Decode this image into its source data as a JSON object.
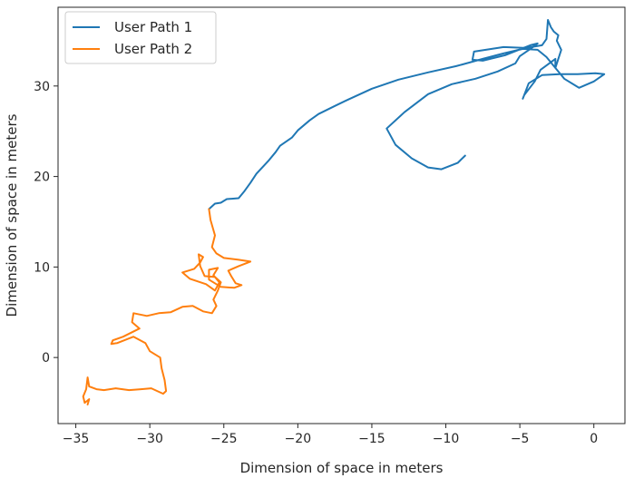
{
  "chart_data": {
    "type": "line",
    "title": "",
    "xlabel": "Dimension of space in meters",
    "ylabel": "Dimension of space in meters",
    "xlim": [
      -36.2,
      2.1
    ],
    "ylim": [
      -7.3,
      38.7
    ],
    "xticks": [
      -35,
      -30,
      -25,
      -20,
      -15,
      -10,
      -5,
      0
    ],
    "yticks": [
      0,
      10,
      20,
      30
    ],
    "xtick_labels": [
      "−35",
      "−30",
      "−25",
      "−20",
      "−15",
      "−10",
      "−5",
      "0"
    ],
    "ytick_labels": [
      "0",
      "10",
      "20",
      "30"
    ],
    "grid": false,
    "legend_position": "top-left",
    "series": [
      {
        "name": "User Path 1",
        "color": "#1f77b4",
        "x": [
          -8.7,
          -9.2,
          -10.3,
          -11.2,
          -12.3,
          -13.4,
          -14.0,
          -12.8,
          -11.2,
          -9.6,
          -8.0,
          -6.5,
          -5.3,
          -5.0,
          -4.2,
          -3.8,
          -4.3,
          -6.0,
          -7.5,
          -8.2,
          -8.1,
          -6.1,
          -4.6,
          -3.5,
          -3.2,
          -3.1,
          -2.9,
          -2.7,
          -2.4,
          -2.5,
          -2.2,
          -2.6,
          -2.6,
          -3.6,
          -4.0,
          -4.7,
          -4.8,
          -4.4,
          -3.5,
          -2.3,
          -1.1,
          0.1,
          0.7,
          0.0,
          -1.0,
          -2.0,
          -2.6,
          -3.2,
          -3.8,
          -4.8,
          -6.1,
          -7.5,
          -9.3,
          -11.2,
          -13.2,
          -15.0,
          -16.6,
          -17.5,
          -18.6,
          -19.2,
          -20.0,
          -20.4,
          -21.2,
          -21.5,
          -22.0,
          -22.8,
          -23.2,
          -23.6,
          -24.0,
          -24.8,
          -25.2,
          -25.6,
          -26.0
        ],
        "y": [
          22.3,
          21.5,
          20.8,
          21.0,
          22.0,
          23.5,
          25.3,
          27.1,
          29.1,
          30.2,
          30.8,
          31.6,
          32.5,
          33.3,
          34.2,
          34.7,
          34.5,
          33.4,
          32.8,
          32.9,
          33.8,
          34.3,
          34.2,
          34.5,
          35.2,
          37.3,
          36.5,
          36.0,
          35.6,
          35.0,
          34.0,
          32.0,
          33.0,
          31.8,
          30.5,
          29.0,
          28.6,
          30.3,
          31.2,
          31.3,
          31.3,
          31.4,
          31.3,
          30.5,
          29.8,
          30.8,
          32.0,
          33.2,
          34.0,
          34.1,
          33.6,
          33.0,
          32.2,
          31.5,
          30.7,
          29.7,
          28.5,
          27.8,
          26.9,
          26.2,
          25.1,
          24.3,
          23.4,
          22.7,
          21.7,
          20.3,
          19.3,
          18.4,
          17.6,
          17.5,
          17.1,
          17.0,
          16.4
        ]
      },
      {
        "name": "User Path 2",
        "color": "#ff7f0e",
        "x": [
          -26.0,
          -25.9,
          -25.6,
          -25.8,
          -25.5,
          -25.0,
          -24.0,
          -23.2,
          -24.0,
          -24.7,
          -24.5,
          -24.2,
          -23.8,
          -24.3,
          -25.2,
          -26.0,
          -26.0,
          -25.4,
          -25.7,
          -25.3,
          -25.6,
          -26.2,
          -27.3,
          -27.8,
          -27.0,
          -26.6,
          -26.4,
          -26.7,
          -26.6,
          -26.3,
          -25.6,
          -25.2,
          -25.4,
          -25.7,
          -25.5,
          -25.8,
          -26.4,
          -27.1,
          -27.8,
          -28.6,
          -29.4,
          -30.2,
          -31.1,
          -31.2,
          -30.7,
          -31.8,
          -32.5,
          -32.6,
          -32.2,
          -31.1,
          -30.3,
          -30.0,
          -29.3,
          -29.2,
          -29.0,
          -28.9,
          -29.1,
          -29.5,
          -29.9,
          -30.6,
          -31.4,
          -32.3,
          -33.1,
          -33.6,
          -34.1,
          -34.2,
          -34.3,
          -34.5,
          -34.4,
          -34.1,
          -34.2
        ],
        "y": [
          16.4,
          15.2,
          13.5,
          12.2,
          11.5,
          11.0,
          10.8,
          10.6,
          10.1,
          9.6,
          9.0,
          8.2,
          8.0,
          7.7,
          7.8,
          8.6,
          9.7,
          9.9,
          9.1,
          8.3,
          7.4,
          8.1,
          8.7,
          9.4,
          9.8,
          10.5,
          11.1,
          11.4,
          10.1,
          9.0,
          8.9,
          8.3,
          7.4,
          6.4,
          5.7,
          4.9,
          5.1,
          5.7,
          5.6,
          5.0,
          4.9,
          4.6,
          4.9,
          3.9,
          3.2,
          2.3,
          1.9,
          1.5,
          1.6,
          2.3,
          1.6,
          0.7,
          0.0,
          -1.2,
          -2.5,
          -3.7,
          -4.0,
          -3.7,
          -3.4,
          -3.5,
          -3.6,
          -3.4,
          -3.6,
          -3.5,
          -3.2,
          -2.2,
          -3.5,
          -4.3,
          -5.0,
          -4.6,
          -5.2
        ]
      }
    ]
  }
}
